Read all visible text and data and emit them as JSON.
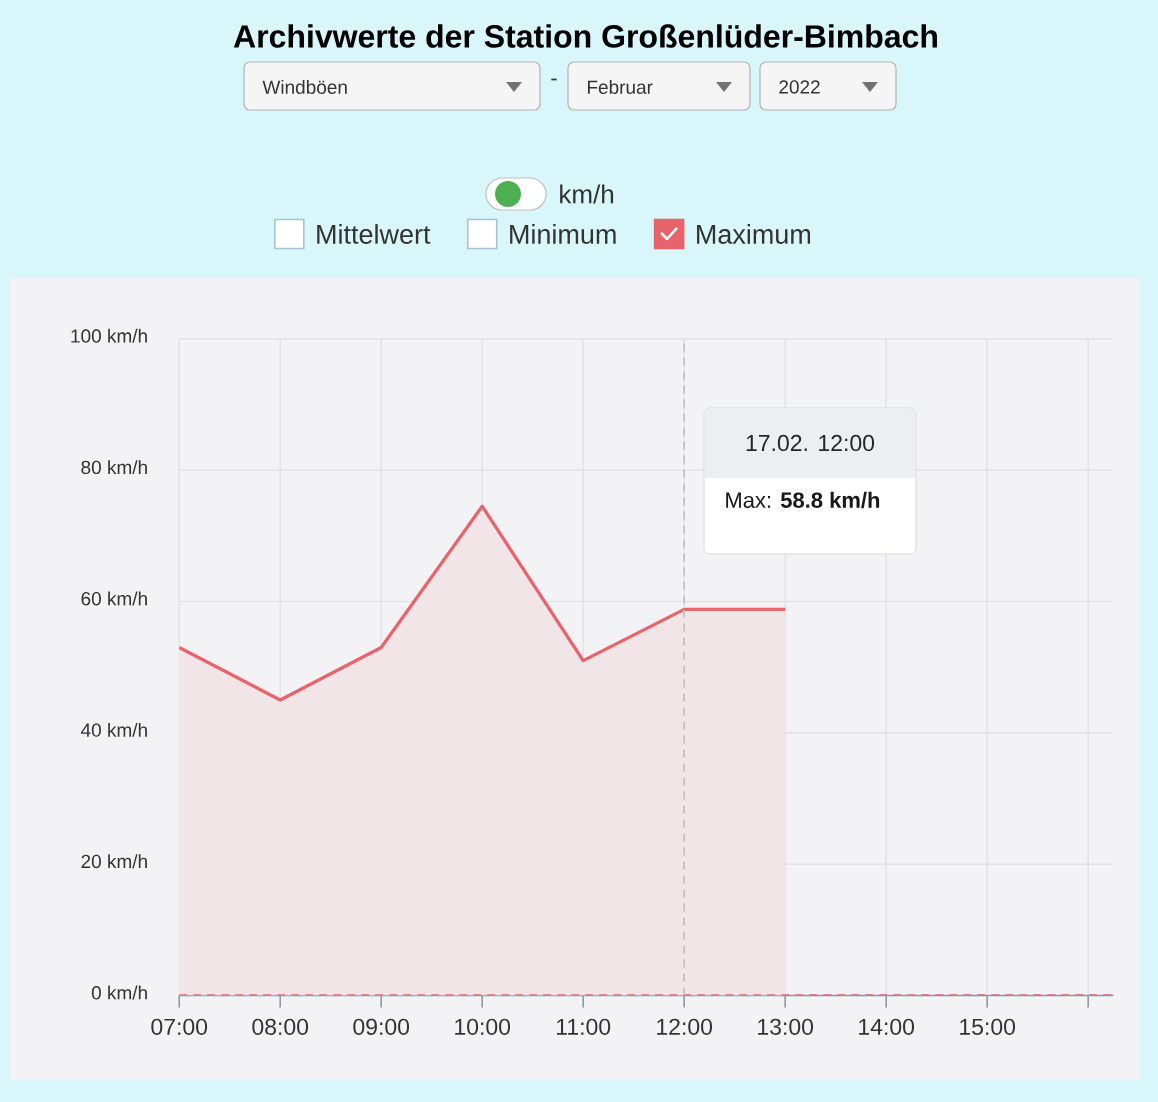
{
  "chart_data": {
    "type": "area",
    "title": "Archivwerte der Station Großenlüder-Bimbach",
    "x": [
      7,
      8,
      9,
      10,
      11,
      12,
      13
    ],
    "series": [
      {
        "name": "Maximum",
        "color": "#e8636b",
        "values": [
          53,
          45,
          53,
          74.5,
          51,
          58.8,
          58.8
        ]
      }
    ],
    "xlim": [
      7,
      16.25
    ],
    "xticks": [
      {
        "value": 7,
        "label": "07:00"
      },
      {
        "value": 8,
        "label": "08:00"
      },
      {
        "value": 9,
        "label": "09:00"
      },
      {
        "value": 10,
        "label": "10:00"
      },
      {
        "value": 11,
        "label": "11:00"
      },
      {
        "value": 12,
        "label": "12:00"
      },
      {
        "value": 13,
        "label": "13:00"
      },
      {
        "value": 14,
        "label": "14:00"
      },
      {
        "value": 15,
        "label": "15:00"
      },
      {
        "value": 16,
        "label": null
      }
    ],
    "ylim": [
      0,
      100
    ],
    "yticks": [
      {
        "value": 0,
        "label": "0 km/h"
      },
      {
        "value": 20,
        "label": "20 km/h"
      },
      {
        "value": 40,
        "label": "40 km/h"
      },
      {
        "value": 60,
        "label": "60 km/h"
      },
      {
        "value": 80,
        "label": "80 km/h"
      },
      {
        "value": 100,
        "label": "100 km/h"
      }
    ],
    "grid": true,
    "legend": "top",
    "ref_lines": [
      {
        "axis": "y",
        "value": 0,
        "color": "#e8636b",
        "line_style": "dashed"
      },
      {
        "axis": "x",
        "value": 12,
        "color": "#bdbdc4",
        "line_style": "dashed"
      }
    ],
    "annotations": [
      "Windböen",
      "-",
      "Februar",
      "2022",
      "km/h",
      "Mittelwert",
      "Minimum",
      "17.02. 12:00",
      "Max: **58.8 km/h**"
    ]
  }
}
